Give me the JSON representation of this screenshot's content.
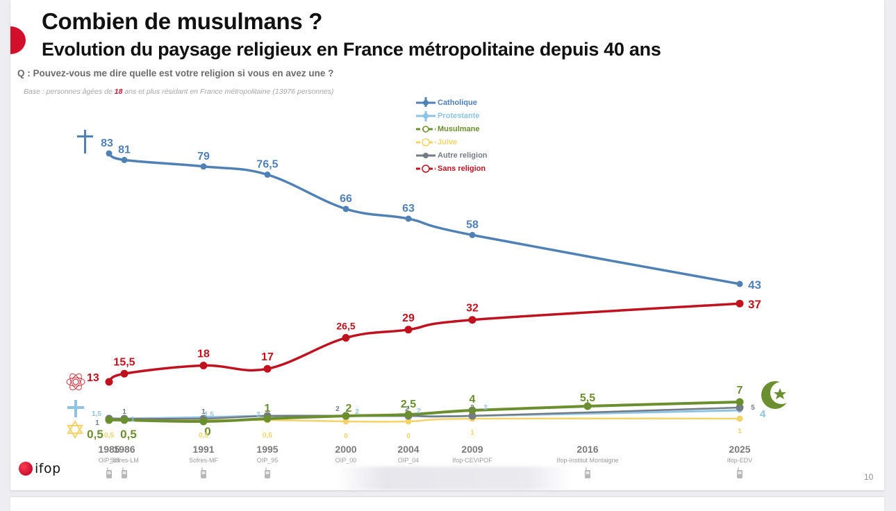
{
  "slide": {
    "title": "Combien de musulmans ?",
    "subtitle": "Evolution du paysage religieux en France métropolitaine depuis 40 ans",
    "question": "Q : Pouvez-vous me dire quelle est votre religion si vous en avez une ?",
    "base_prefix": "Base : personnes âgées de ",
    "base_highlight": "18",
    "base_suffix": " ans et plus résidant en France métropolitaine (13976 personnes)",
    "page_number": "10",
    "logo_text": "ifop",
    "brand_color": "#d2102c"
  },
  "chart_data": {
    "type": "line",
    "title": "Evolution du paysage religieux en France métropolitaine depuis 40 ans",
    "xlabel": "",
    "ylabel": "%",
    "ylim": [
      0,
      85
    ],
    "grid": false,
    "legend_position": "top-center",
    "x": [
      1985,
      1986,
      1991,
      1995,
      2000,
      2004,
      2009,
      2016,
      2025
    ],
    "x_labels": [
      "1985",
      "1986",
      "1991",
      "1995",
      "2000",
      "2004",
      "2009",
      "2016",
      "2025"
    ],
    "x_sources": [
      "OIP_85",
      "Sofres-LM",
      "Sofres-MF",
      "OIP_95",
      "OIP_00",
      "OIP_04",
      "Ifop-CEVIPOF",
      "Ifop-Institut Montaigne",
      "Ifop-EDV"
    ],
    "x_phone_icon": [
      true,
      true,
      true,
      true,
      false,
      false,
      false,
      true,
      true
    ],
    "series": [
      {
        "name": "Catholique",
        "color": "#4f81b5",
        "icon": "cross-icon",
        "values": [
          83,
          81,
          79,
          76.5,
          66,
          63,
          58,
          null,
          43
        ],
        "labels": [
          "83",
          "81",
          "79",
          "76,5",
          "66",
          "63",
          "58",
          null,
          "43"
        ]
      },
      {
        "name": "Protestante",
        "color": "#8ec4e3",
        "icon": "cross-icon",
        "values": [
          1.5,
          1,
          1.5,
          2,
          2,
          2,
          2,
          null,
          4
        ],
        "labels": [
          "1,5",
          "1",
          "1,5",
          "2",
          "2",
          "2",
          "2",
          null,
          "4"
        ]
      },
      {
        "name": "Musulmane",
        "color": "#6b8e2f",
        "icon": "crescent-star-icon",
        "values": [
          0.5,
          0.5,
          0,
          1,
          2,
          2.5,
          4,
          5.5,
          7
        ],
        "labels": [
          "0,5",
          "0,5",
          "0",
          "1",
          "2",
          "2,5",
          "4",
          "5,5",
          "7"
        ]
      },
      {
        "name": "Juive",
        "color": "#f3d368",
        "icon": "star-of-david-icon",
        "values": [
          0.5,
          0.5,
          0.5,
          0.5,
          0,
          0,
          1,
          null,
          1
        ],
        "labels": [
          "0,5",
          null,
          "0,5",
          "0,5",
          "0",
          "0",
          "1",
          null,
          "1"
        ]
      },
      {
        "name": "Autre religion",
        "color": "#737b85",
        "icon": "dot-icon",
        "values": [
          1,
          1,
          1,
          2,
          2,
          2,
          2,
          null,
          5
        ],
        "labels": [
          "1",
          "1",
          "1",
          null,
          "2",
          "2",
          "2",
          null,
          "5"
        ]
      },
      {
        "name": "Sans religion",
        "color": "#c0111f",
        "icon": "atom-icon",
        "values": [
          13,
          15.5,
          18,
          17,
          26.5,
          29,
          32,
          null,
          37
        ],
        "labels": [
          "13",
          "15,5",
          "18",
          "17",
          "26,5",
          "29",
          "32",
          null,
          "37"
        ]
      }
    ]
  }
}
